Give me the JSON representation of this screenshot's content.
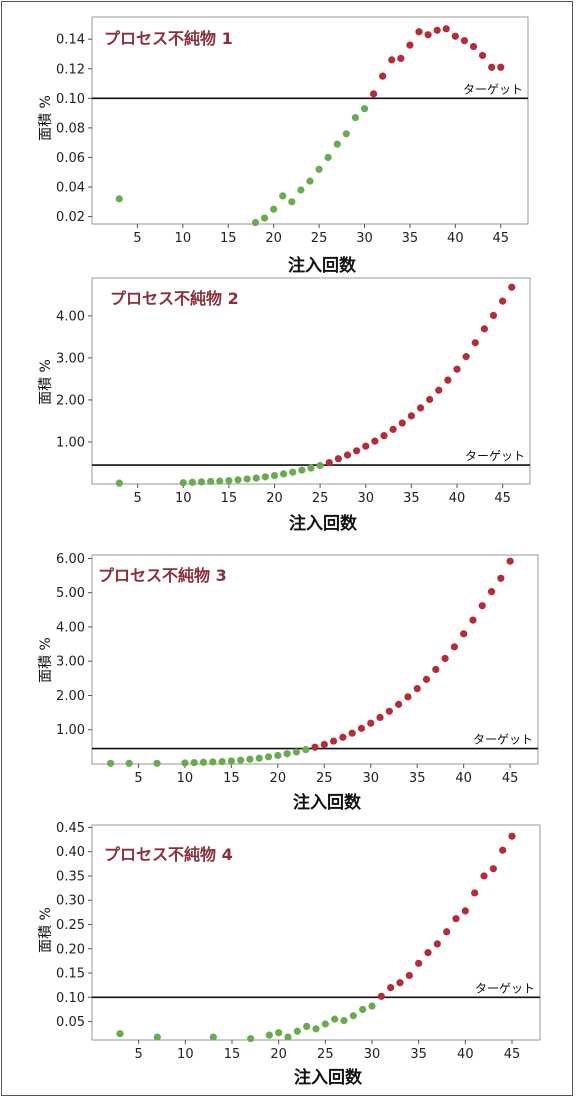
{
  "colors": {
    "below": "#6aaa50",
    "above": "#b52b3a",
    "title": "#8b2f3c",
    "target_line": "#111111"
  },
  "chart_data": [
    {
      "type": "scatter",
      "title": "プロセス不純物 1",
      "xlabel": "注入回数",
      "ylabel": "面積 %",
      "xlim": [
        0,
        48
      ],
      "ylim": [
        0.015,
        0.155
      ],
      "xticks": [
        5,
        10,
        15,
        20,
        25,
        30,
        35,
        40,
        45
      ],
      "yticks": [
        0.02,
        0.04,
        0.06,
        0.08,
        0.1,
        0.12,
        0.14
      ],
      "ytick_labels": [
        "0.02",
        "0.04",
        "0.06",
        "0.08",
        "0.10",
        "0.12",
        "0.14"
      ],
      "target": 0.1,
      "target_label": "ターゲット",
      "points": [
        [
          3,
          0.032
        ],
        [
          17,
          0.014
        ],
        [
          18,
          0.016
        ],
        [
          19,
          0.019
        ],
        [
          20,
          0.025
        ],
        [
          21,
          0.034
        ],
        [
          22,
          0.03
        ],
        [
          23,
          0.038
        ],
        [
          24,
          0.044
        ],
        [
          25,
          0.052
        ],
        [
          26,
          0.06
        ],
        [
          27,
          0.069
        ],
        [
          28,
          0.076
        ],
        [
          29,
          0.087
        ],
        [
          30,
          0.093
        ],
        [
          31,
          0.103
        ],
        [
          32,
          0.115
        ],
        [
          33,
          0.126
        ],
        [
          34,
          0.127
        ],
        [
          35,
          0.136
        ],
        [
          36,
          0.145
        ],
        [
          37,
          0.143
        ],
        [
          38,
          0.146
        ],
        [
          39,
          0.147
        ],
        [
          40,
          0.142
        ],
        [
          41,
          0.139
        ],
        [
          42,
          0.135
        ],
        [
          43,
          0.129
        ],
        [
          44,
          0.121
        ],
        [
          45,
          0.121
        ]
      ]
    },
    {
      "type": "scatter",
      "title": "プロセス不純物 2",
      "xlabel": "注入回数",
      "ylabel": "面積 %",
      "xlim": [
        0,
        48
      ],
      "ylim": [
        0,
        4.9
      ],
      "xticks": [
        5,
        10,
        15,
        20,
        25,
        30,
        35,
        40,
        45
      ],
      "yticks": [
        1,
        2,
        3,
        4
      ],
      "ytick_labels": [
        "1.00",
        "2.00",
        "3.00",
        "4.00"
      ],
      "target": 0.45,
      "target_label": "ターゲット",
      "points": [
        [
          3,
          0.02
        ],
        [
          10,
          0.03
        ],
        [
          11,
          0.04
        ],
        [
          12,
          0.05
        ],
        [
          13,
          0.06
        ],
        [
          14,
          0.07
        ],
        [
          15,
          0.08
        ],
        [
          16,
          0.1
        ],
        [
          17,
          0.12
        ],
        [
          18,
          0.14
        ],
        [
          19,
          0.17
        ],
        [
          20,
          0.2
        ],
        [
          21,
          0.24
        ],
        [
          22,
          0.28
        ],
        [
          23,
          0.33
        ],
        [
          24,
          0.38
        ],
        [
          25,
          0.44
        ],
        [
          26,
          0.51
        ],
        [
          27,
          0.6
        ],
        [
          28,
          0.69
        ],
        [
          29,
          0.79
        ],
        [
          30,
          0.9
        ],
        [
          31,
          1.02
        ],
        [
          32,
          1.15
        ],
        [
          33,
          1.3
        ],
        [
          34,
          1.45
        ],
        [
          35,
          1.62
        ],
        [
          36,
          1.81
        ],
        [
          37,
          2.01
        ],
        [
          38,
          2.23
        ],
        [
          39,
          2.47
        ],
        [
          40,
          2.73
        ],
        [
          41,
          3.03
        ],
        [
          42,
          3.36
        ],
        [
          43,
          3.69
        ],
        [
          44,
          4.01
        ],
        [
          45,
          4.35
        ],
        [
          46,
          4.68
        ]
      ]
    },
    {
      "type": "scatter",
      "title": "プロセス不純物 3",
      "xlabel": "注入回数",
      "ylabel": "面積 %",
      "xlim": [
        0,
        48
      ],
      "ylim": [
        0,
        6.1
      ],
      "xticks": [
        5,
        10,
        15,
        20,
        25,
        30,
        35,
        40,
        45
      ],
      "yticks": [
        1,
        2,
        3,
        4,
        5,
        6
      ],
      "ytick_labels": [
        "1.00",
        "2.00",
        "3.00",
        "4.00",
        "5.00",
        "6.00"
      ],
      "target": 0.45,
      "target_label": "ターゲット",
      "points": [
        [
          2,
          0.02
        ],
        [
          4,
          0.02
        ],
        [
          7,
          0.02
        ],
        [
          10,
          0.03
        ],
        [
          11,
          0.04
        ],
        [
          12,
          0.05
        ],
        [
          13,
          0.06
        ],
        [
          14,
          0.07
        ],
        [
          15,
          0.09
        ],
        [
          16,
          0.11
        ],
        [
          17,
          0.14
        ],
        [
          18,
          0.17
        ],
        [
          19,
          0.21
        ],
        [
          20,
          0.25
        ],
        [
          21,
          0.3
        ],
        [
          22,
          0.35
        ],
        [
          23,
          0.42
        ],
        [
          24,
          0.49
        ],
        [
          25,
          0.57
        ],
        [
          26,
          0.67
        ],
        [
          27,
          0.78
        ],
        [
          28,
          0.9
        ],
        [
          29,
          1.04
        ],
        [
          30,
          1.19
        ],
        [
          31,
          1.36
        ],
        [
          32,
          1.54
        ],
        [
          33,
          1.74
        ],
        [
          34,
          1.96
        ],
        [
          35,
          2.2
        ],
        [
          36,
          2.47
        ],
        [
          37,
          2.76
        ],
        [
          38,
          3.08
        ],
        [
          39,
          3.42
        ],
        [
          40,
          3.8
        ],
        [
          41,
          4.2
        ],
        [
          42,
          4.62
        ],
        [
          43,
          5.03
        ],
        [
          44,
          5.42
        ],
        [
          45,
          5.92
        ]
      ]
    },
    {
      "type": "scatter",
      "title": "プロセス不純物 4",
      "xlabel": "注入回数",
      "ylabel": "面積 %",
      "xlim": [
        0,
        48
      ],
      "ylim": [
        0.012,
        0.455
      ],
      "xticks": [
        5,
        10,
        15,
        20,
        25,
        30,
        35,
        40,
        45
      ],
      "yticks": [
        0.05,
        0.1,
        0.15,
        0.2,
        0.25,
        0.3,
        0.35,
        0.4,
        0.45
      ],
      "ytick_labels": [
        "0.05",
        "0.10",
        "0.15",
        "0.20",
        "0.25",
        "0.30",
        "0.35",
        "0.40",
        "0.45"
      ],
      "target": 0.1,
      "target_label": "ターゲット",
      "points": [
        [
          3,
          0.025
        ],
        [
          7,
          0.018
        ],
        [
          13,
          0.018
        ],
        [
          17,
          0.015
        ],
        [
          19,
          0.022
        ],
        [
          20,
          0.027
        ],
        [
          21,
          0.018
        ],
        [
          22,
          0.03
        ],
        [
          23,
          0.04
        ],
        [
          24,
          0.035
        ],
        [
          25,
          0.045
        ],
        [
          26,
          0.055
        ],
        [
          27,
          0.052
        ],
        [
          28,
          0.062
        ],
        [
          29,
          0.075
        ],
        [
          30,
          0.082
        ],
        [
          31,
          0.102
        ],
        [
          32,
          0.12
        ],
        [
          33,
          0.13
        ],
        [
          34,
          0.145
        ],
        [
          35,
          0.17
        ],
        [
          36,
          0.192
        ],
        [
          37,
          0.21
        ],
        [
          38,
          0.235
        ],
        [
          39,
          0.262
        ],
        [
          40,
          0.278
        ],
        [
          41,
          0.315
        ],
        [
          42,
          0.35
        ],
        [
          43,
          0.365
        ],
        [
          44,
          0.403
        ],
        [
          45,
          0.432
        ]
      ]
    }
  ]
}
